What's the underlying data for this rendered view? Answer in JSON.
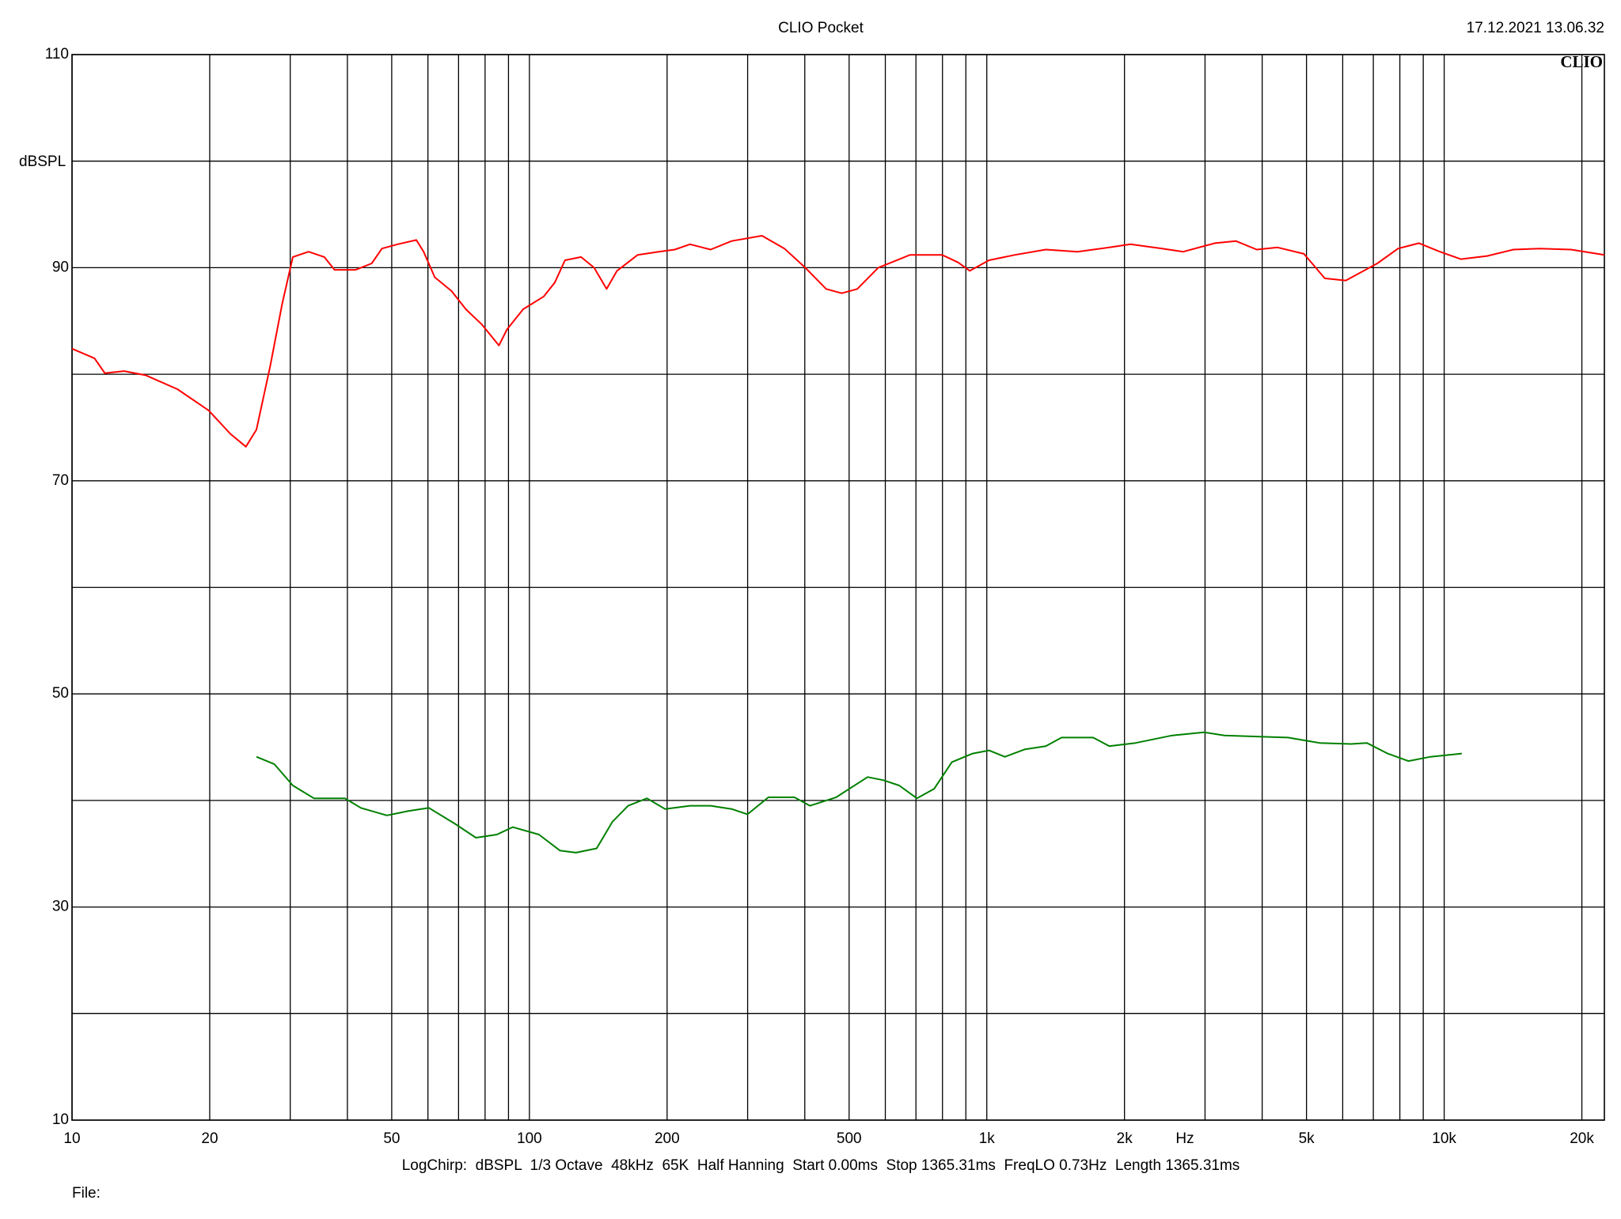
{
  "chart_data": {
    "type": "line",
    "title": "CLIO Pocket",
    "timestamp": "17.12.2021 13.06.32",
    "logo": "CLIO",
    "ylabel": "dBSPL",
    "xlabel": "Hz",
    "footer": "LogChirp:  dBSPL  1/3 Octave  48kHz  65K  Half Hanning  Start 0.00ms  Stop 1365.31ms  FreqLO 0.73Hz  Length 1365.31ms",
    "file_label": "File:",
    "xscale": "log",
    "grid": true,
    "xlim": [
      10,
      22400
    ],
    "ylim": [
      10,
      110
    ],
    "xticks": [
      10,
      20,
      50,
      100,
      200,
      500,
      {
        "value": 1000,
        "label": "1k"
      },
      {
        "value": 2000,
        "label": "2k"
      },
      {
        "value": 5000,
        "label": "5k"
      },
      {
        "value": 10000,
        "label": "10k"
      },
      {
        "value": 20000,
        "label": "20k"
      }
    ],
    "xminor": [
      30,
      40,
      60,
      70,
      80,
      90,
      300,
      400,
      600,
      700,
      800,
      900,
      3000,
      4000,
      6000,
      7000,
      8000,
      9000
    ],
    "yticks": [
      10,
      30,
      50,
      70,
      90,
      110
    ],
    "yminor": [
      20,
      40,
      60,
      80,
      100
    ],
    "series": [
      {
        "color": "#ff0000",
        "x": [
          10,
          11.2,
          11.8,
          13,
          14.5,
          17,
          19.9,
          22.2,
          24,
          25.3,
          27.1,
          28.8,
          30.4,
          32.9,
          35.6,
          37.5,
          41.7,
          45.2,
          47.6,
          51.5,
          56.6,
          58.7,
          62.1,
          67.6,
          72.6,
          78.6,
          85.8,
          89.3,
          96.9,
          107.5,
          113.6,
          119.6,
          129.7,
          138.5,
          147.5,
          155.4,
          172.5,
          191.8,
          207.9,
          224.5,
          249,
          276.8,
          322.5,
          360.9,
          401,
          445.5,
          481.8,
          521,
          579.1,
          679.5,
          797.9,
          865.3,
          918.3,
          1011,
          1153,
          1346,
          1579,
          1853,
          2061,
          2418,
          2688,
          3154,
          3504,
          3892,
          4323,
          4935,
          5483,
          6093,
          6600,
          7141,
          7930,
          8808,
          9787,
          10873,
          12410,
          14170,
          16171,
          18934,
          22400
        ],
        "values": [
          82.4,
          81.5,
          80.1,
          80.3,
          79.9,
          78.6,
          76.6,
          74.4,
          73.2,
          74.8,
          80.7,
          86.6,
          91.0,
          91.5,
          91.0,
          89.8,
          89.8,
          90.4,
          91.8,
          92.2,
          92.6,
          91.5,
          89.1,
          87.8,
          86.1,
          84.7,
          82.7,
          84.2,
          86.1,
          87.3,
          88.6,
          90.7,
          91.0,
          90.0,
          88.0,
          89.7,
          91.2,
          91.5,
          91.7,
          92.2,
          91.7,
          92.5,
          93.0,
          91.8,
          90.0,
          88.0,
          87.6,
          88.0,
          90.0,
          91.2,
          91.2,
          90.5,
          89.7,
          90.7,
          91.2,
          91.7,
          91.5,
          91.9,
          92.2,
          91.8,
          91.5,
          92.3,
          92.5,
          91.7,
          91.9,
          91.3,
          89.0,
          88.8,
          89.6,
          90.4,
          91.8,
          92.3,
          91.5,
          90.8,
          91.1,
          91.7,
          91.8,
          91.7,
          91.2
        ]
      },
      {
        "color": "#008000",
        "x": [
          25.3,
          27.7,
          30.4,
          33.8,
          39.5,
          42.8,
          48.8,
          54.2,
          60.3,
          68.8,
          76.4,
          84.9,
          91.9,
          104.9,
          116.6,
          126.3,
          140.3,
          151.9,
          164.4,
          180.7,
          197.9,
          224.5,
          249,
          276.8,
          299.8,
          333,
          379.7,
          410.5,
          468.5,
          548.9,
          594.4,
          643.4,
          703.4,
          767.3,
          838.6,
          931,
          1011,
          1095,
          1212,
          1346,
          1457,
          1708,
          1853,
          2116,
          2543,
          2981,
          3308,
          3892,
          4555,
          5338,
          6257,
          6775,
          7524,
          8354,
          9327,
          10930
        ],
        "values": [
          44.1,
          43.4,
          41.4,
          40.2,
          40.2,
          39.3,
          38.6,
          39.0,
          39.3,
          37.8,
          36.5,
          36.8,
          37.5,
          36.8,
          35.3,
          35.1,
          35.5,
          38.0,
          39.5,
          40.2,
          39.2,
          39.5,
          39.5,
          39.2,
          38.7,
          40.3,
          40.3,
          39.5,
          40.3,
          42.2,
          41.9,
          41.4,
          40.2,
          41.1,
          43.6,
          44.4,
          44.7,
          44.1,
          44.8,
          45.1,
          45.9,
          45.9,
          45.1,
          45.4,
          46.1,
          46.4,
          46.1,
          46.0,
          45.9,
          45.4,
          45.3,
          45.4,
          44.4,
          43.7,
          44.1,
          44.4
        ]
      }
    ]
  }
}
